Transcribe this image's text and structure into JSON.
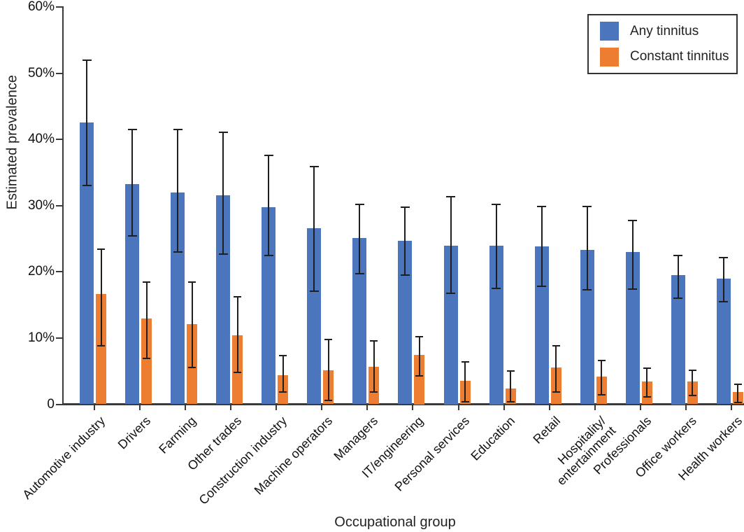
{
  "chart_data": {
    "type": "bar",
    "title": "",
    "xlabel": "Occupational group",
    "ylabel": "Estimated prevalence",
    "ylim": [
      0,
      60
    ],
    "y_unit": "%",
    "grid": false,
    "legend_position": "top-right",
    "error_bars": true,
    "ytick_values": [
      0,
      10,
      20,
      30,
      40,
      50,
      60
    ],
    "ytick_labels": [
      "0",
      "10%",
      "20%",
      "30%",
      "40%",
      "50%",
      "60%"
    ],
    "categories": [
      "Automotive industry",
      "Drivers",
      "Farming",
      "Other trades",
      "Construction industry",
      "Machine operators",
      "Managers",
      "IT/engineering",
      "Personal services",
      "Education",
      "Retail",
      "Hospitality/\nentertainment",
      "Professionals",
      "Office workers",
      "Health workers"
    ],
    "series": [
      {
        "name": "Any tinnitus",
        "color": "#4b76be",
        "values": [
          42.6,
          33.2,
          32.0,
          31.6,
          29.8,
          26.6,
          25.1,
          24.7,
          24.0,
          24.0,
          23.8,
          23.3,
          23.0,
          19.5,
          19.0
        ],
        "ci_low": [
          33.0,
          25.4,
          23.0,
          22.7,
          22.5,
          17.1,
          19.7,
          19.5,
          16.8,
          17.5,
          17.8,
          17.3,
          17.4,
          16.0,
          15.5
        ],
        "ci_high": [
          52.0,
          41.5,
          41.5,
          41.1,
          37.6,
          35.9,
          30.2,
          29.8,
          31.4,
          30.2,
          29.9,
          29.9,
          27.8,
          22.5,
          22.1
        ]
      },
      {
        "name": "Constant tinnitus",
        "color": "#ed7d31",
        "values": [
          16.6,
          13.0,
          12.1,
          10.4,
          4.4,
          5.1,
          5.7,
          7.5,
          3.5,
          2.4,
          5.6,
          4.2,
          3.4,
          3.4,
          1.8
        ],
        "ci_low": [
          8.8,
          6.9,
          5.6,
          4.8,
          1.9,
          0.6,
          1.9,
          4.3,
          0.4,
          0.4,
          1.9,
          1.4,
          1.1,
          1.3,
          0.3
        ],
        "ci_high": [
          23.4,
          18.5,
          18.5,
          16.2,
          7.4,
          9.8,
          9.6,
          10.2,
          6.4,
          5.0,
          8.8,
          6.6,
          5.4,
          5.1,
          3.0
        ]
      }
    ]
  }
}
